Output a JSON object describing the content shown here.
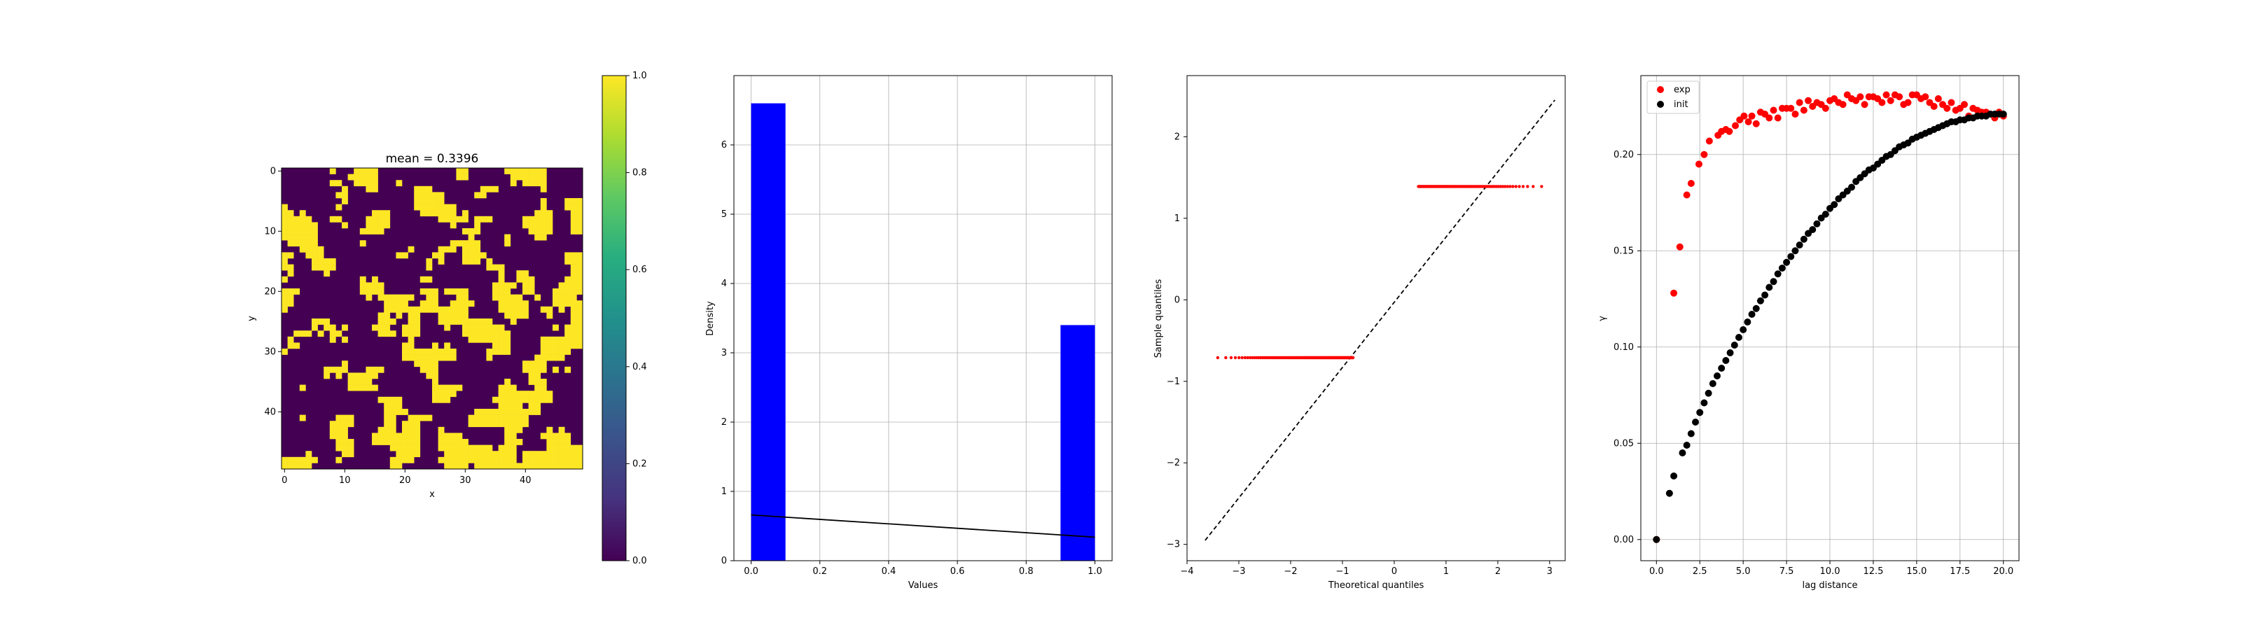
{
  "figure": {
    "panels": [
      {
        "title": "mean = 0.3396",
        "xlabel": "x",
        "ylabel": "y",
        "x_ticks": [
          "0",
          "10",
          "20",
          "30",
          "40"
        ],
        "y_ticks": [
          "0",
          "10",
          "20",
          "30",
          "40"
        ],
        "colorbar_ticks": [
          "0.0",
          "0.2",
          "0.4",
          "0.6",
          "0.8",
          "1.0"
        ]
      },
      {
        "title": "",
        "xlabel": "Values",
        "ylabel": "Density",
        "x_ticks": [
          "0.0",
          "0.2",
          "0.4",
          "0.6",
          "0.8",
          "1.0"
        ],
        "y_ticks": [
          "0",
          "1",
          "2",
          "3",
          "4",
          "5",
          "6"
        ]
      },
      {
        "title": "",
        "xlabel": "Theoretical quantiles",
        "ylabel": "Sample quantiles",
        "x_ticks": [
          "−4",
          "−3",
          "−2",
          "−1",
          "0",
          "1",
          "2",
          "3"
        ],
        "y_ticks": [
          "−3",
          "−2",
          "−1",
          "0",
          "1",
          "2"
        ]
      },
      {
        "title": "",
        "xlabel": "lag distance",
        "ylabel": "γ",
        "x_ticks": [
          "0.0",
          "2.5",
          "5.0",
          "7.5",
          "10.0",
          "12.5",
          "15.0",
          "17.5",
          "20.0"
        ],
        "y_ticks": [
          "0.00",
          "0.05",
          "0.10",
          "0.15",
          "0.20"
        ],
        "legend": [
          "exp",
          "init"
        ]
      }
    ]
  },
  "chart_data": [
    {
      "type": "heatmap",
      "title": "mean = 0.3396",
      "xlabel": "x",
      "ylabel": "y",
      "grid_shape": [
        50,
        50
      ],
      "value_range": [
        0,
        1
      ],
      "mean": 0.3396,
      "colormap": "viridis",
      "colors": {
        "low": "#440154",
        "high": "#fde725"
      },
      "colorbar": {
        "min": 0.0,
        "max": 1.0,
        "ticks": [
          0.0,
          0.2,
          0.4,
          0.6,
          0.8,
          1.0
        ]
      }
    },
    {
      "type": "bar",
      "subtype": "histogram",
      "xlabel": "Values",
      "ylabel": "Density",
      "bins": [
        {
          "x0": 0.0,
          "x1": 0.1,
          "density": 6.6
        },
        {
          "x0": 0.9,
          "x1": 1.0,
          "density": 3.4
        }
      ],
      "line": {
        "x": [
          0.0,
          1.0
        ],
        "y": [
          0.66,
          0.34
        ],
        "color": "#000000"
      },
      "xlim": [
        -0.05,
        1.05
      ],
      "ylim": [
        0,
        7.0
      ],
      "bar_color": "#0000ff",
      "grid": true
    },
    {
      "type": "scatter",
      "subtype": "qq-plot",
      "xlabel": "Theoretical quantiles",
      "ylabel": "Sample quantiles",
      "xlim": [
        -4.0,
        3.3
      ],
      "ylim": [
        -3.2,
        2.75
      ],
      "reference_line": {
        "x": [
          -3.65,
          3.1
        ],
        "y": [
          -2.95,
          2.45
        ],
        "style": "dashed",
        "color": "#000000"
      },
      "series": [
        {
          "color": "#ff0000",
          "y": -0.71,
          "x_range": [
            -3.65,
            -0.79
          ],
          "count": 3302
        },
        {
          "color": "#ff0000",
          "y": 1.39,
          "x_range": [
            0.46,
            3.1
          ],
          "count": 1698
        }
      ],
      "grid": false
    },
    {
      "type": "scatter",
      "subtype": "variogram",
      "xlabel": "lag distance",
      "ylabel": "γ",
      "xlim": [
        -0.9,
        20.9
      ],
      "ylim": [
        -0.011,
        0.241
      ],
      "grid": true,
      "legend_position": "top-left",
      "series": [
        {
          "name": "exp",
          "color": "#ff0000",
          "x": [
            0,
            1.0,
            1.35,
            1.75,
            2.0,
            2.45,
            2.75,
            3.05,
            3.55,
            3.75,
            4.0,
            4.2,
            4.55,
            4.8,
            5.05,
            5.3,
            5.5,
            5.75,
            6.0,
            6.25,
            6.5,
            6.75,
            7.0,
            7.25,
            7.5,
            7.75,
            8.0,
            8.25,
            8.5,
            8.75,
            9.0,
            9.25,
            9.5,
            9.75,
            10.0,
            10.25,
            10.5,
            10.75,
            11.0,
            11.25,
            11.5,
            11.75,
            12.0,
            12.25,
            12.5,
            12.75,
            13.0,
            13.25,
            13.5,
            13.75,
            14.0,
            14.25,
            14.5,
            14.75,
            15.0,
            15.25,
            15.5,
            15.75,
            16.0,
            16.25,
            16.5,
            16.75,
            17.0,
            17.25,
            17.5,
            17.75,
            18.0,
            18.25,
            18.5,
            18.75,
            19.0,
            19.25,
            19.5,
            19.75,
            20.0
          ],
          "y": [
            0,
            0.128,
            0.152,
            0.179,
            0.185,
            0.195,
            0.2,
            0.207,
            0.21,
            0.212,
            0.213,
            0.212,
            0.215,
            0.218,
            0.22,
            0.217,
            0.22,
            0.216,
            0.222,
            0.221,
            0.219,
            0.223,
            0.219,
            0.224,
            0.224,
            0.224,
            0.221,
            0.227,
            0.223,
            0.228,
            0.225,
            0.227,
            0.226,
            0.224,
            0.228,
            0.229,
            0.227,
            0.226,
            0.231,
            0.229,
            0.228,
            0.23,
            0.226,
            0.23,
            0.23,
            0.229,
            0.227,
            0.231,
            0.228,
            0.231,
            0.23,
            0.226,
            0.227,
            0.231,
            0.231,
            0.229,
            0.23,
            0.227,
            0.225,
            0.229,
            0.226,
            0.224,
            0.227,
            0.223,
            0.224,
            0.226,
            0.22,
            0.224,
            0.223,
            0.222,
            0.222,
            0.221,
            0.219,
            0.222,
            0.22
          ]
        },
        {
          "name": "init",
          "color": "#000000",
          "x": [
            0,
            0.75,
            1.0,
            1.5,
            1.75,
            2.0,
            2.25,
            2.5,
            2.75,
            3.0,
            3.25,
            3.5,
            3.75,
            4.0,
            4.25,
            4.5,
            4.75,
            5.0,
            5.25,
            5.5,
            5.75,
            6.0,
            6.25,
            6.5,
            6.75,
            7.0,
            7.25,
            7.5,
            7.75,
            8.0,
            8.25,
            8.5,
            8.75,
            9.0,
            9.25,
            9.5,
            9.75,
            10.0,
            10.25,
            10.5,
            10.75,
            11.0,
            11.25,
            11.5,
            11.75,
            12.0,
            12.25,
            12.5,
            12.75,
            13.0,
            13.25,
            13.5,
            13.75,
            14.0,
            14.25,
            14.5,
            14.75,
            15.0,
            15.25,
            15.5,
            15.75,
            16.0,
            16.25,
            16.5,
            16.75,
            17.0,
            17.25,
            17.5,
            17.75,
            18.0,
            18.25,
            18.5,
            18.75,
            19.0,
            19.25,
            19.5,
            19.75,
            20.0
          ],
          "y": [
            0,
            0.024,
            0.033,
            0.045,
            0.049,
            0.055,
            0.061,
            0.066,
            0.071,
            0.076,
            0.081,
            0.085,
            0.089,
            0.093,
            0.097,
            0.101,
            0.105,
            0.109,
            0.113,
            0.117,
            0.12,
            0.124,
            0.127,
            0.131,
            0.134,
            0.138,
            0.141,
            0.144,
            0.147,
            0.15,
            0.153,
            0.156,
            0.159,
            0.161,
            0.164,
            0.167,
            0.169,
            0.172,
            0.174,
            0.177,
            0.179,
            0.181,
            0.183,
            0.186,
            0.188,
            0.19,
            0.192,
            0.193,
            0.195,
            0.197,
            0.199,
            0.2,
            0.202,
            0.204,
            0.205,
            0.206,
            0.208,
            0.209,
            0.21,
            0.211,
            0.212,
            0.213,
            0.214,
            0.215,
            0.216,
            0.217,
            0.217,
            0.218,
            0.218,
            0.219,
            0.219,
            0.22,
            0.22,
            0.22,
            0.221,
            0.221,
            0.221,
            0.221
          ]
        }
      ]
    }
  ]
}
